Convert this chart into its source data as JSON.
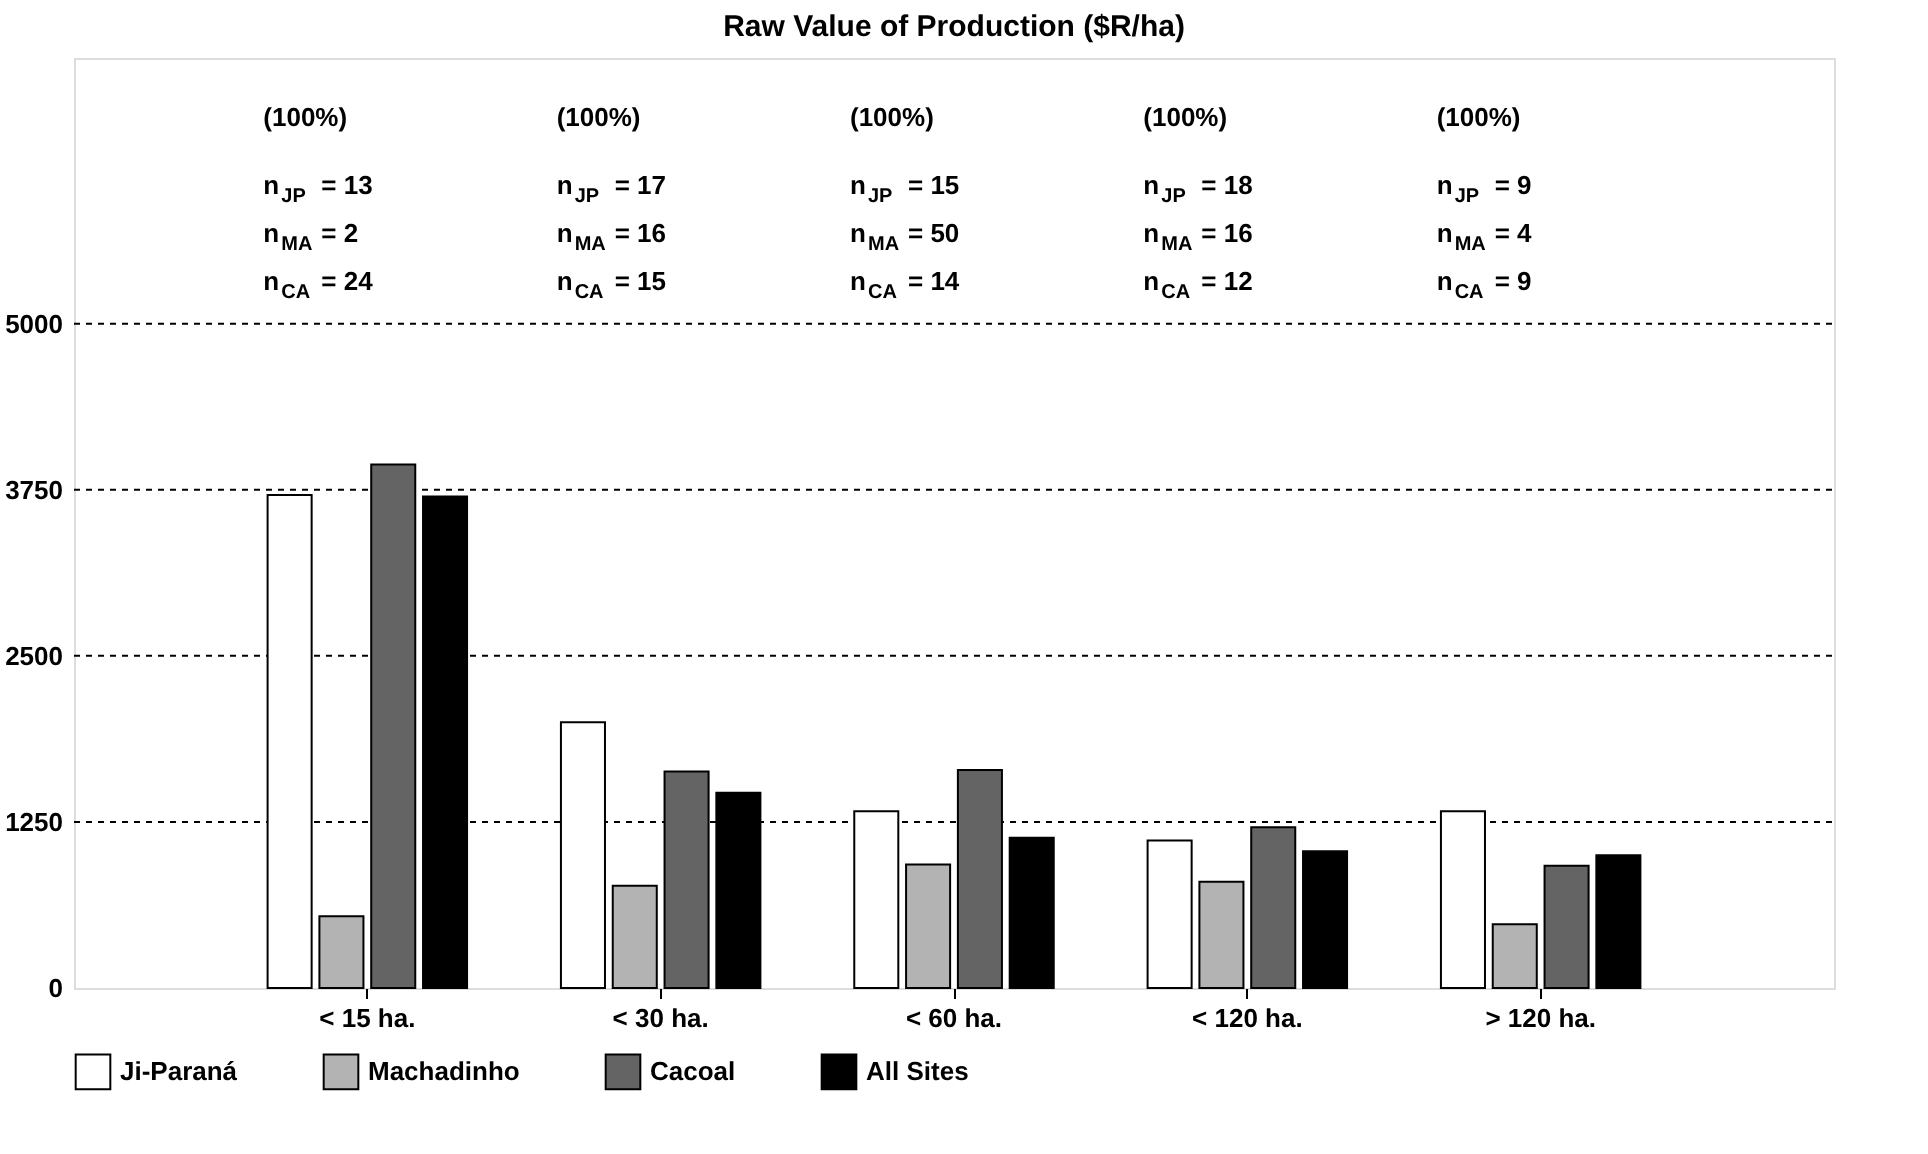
{
  "chart_data": {
    "type": "bar",
    "title": "Raw Value of Production ($R/ha)",
    "categories": [
      "< 15 ha.",
      "< 30 ha.",
      "< 60 ha.",
      "< 120 ha.",
      "> 120 ha."
    ],
    "series": [
      {
        "name": "Ji-Paraná",
        "color": "#ffffff",
        "values": [
          3710,
          2000,
          1330,
          1110,
          1330
        ]
      },
      {
        "name": "Machadinho",
        "color": "#b3b3b3",
        "values": [
          540,
          770,
          930,
          800,
          480
        ]
      },
      {
        "name": "Cacoal",
        "color": "#646464",
        "values": [
          3940,
          1630,
          1640,
          1210,
          920
        ]
      },
      {
        "name": "All Sites",
        "color": "#000000",
        "values": [
          3700,
          1470,
          1130,
          1030,
          1000
        ]
      }
    ],
    "ylim": [
      0,
      7000
    ],
    "yticks": [
      0,
      1250,
      2500,
      3750,
      5000
    ],
    "grid": "y",
    "legend": "bottom",
    "annotations": [
      "(100%)",
      "n$_{JP}$ = 13",
      "n$_{MA}$ = 2",
      "n$_{CA}$ = 24",
      "(100%)",
      "n$_{JP}$ = 17",
      "n$_{MA}$ = 16",
      "n$_{CA}$ = 15",
      "(100%)",
      "n$_{JP}$ = 15",
      "n$_{MA}$ = 50",
      "n$_{CA}$ = 14",
      "(100%)",
      "n$_{JP}$ = 18",
      "n$_{MA}$ = 16",
      "n$_{CA}$ = 12",
      "(100%)",
      "n$_{JP}$ = 9",
      "n$_{MA}$ = 4",
      "n$_{CA}$ = 9"
    ]
  }
}
